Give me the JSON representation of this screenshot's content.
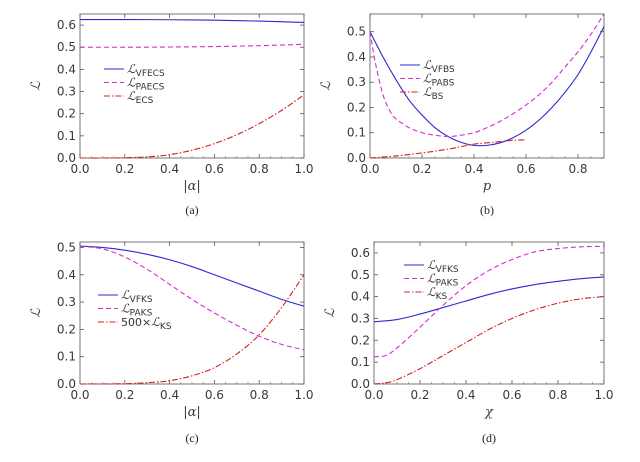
{
  "chart_data": [
    {
      "type": "line",
      "caption": "(a)",
      "xlabel": "|α|",
      "ylabel": "ℒ",
      "xlim": [
        0,
        1
      ],
      "ylim": [
        0,
        0.65
      ],
      "xticks": [
        "0.0",
        "0.2",
        "0.4",
        "0.6",
        "0.8",
        "1.0"
      ],
      "yticks": [
        "0.0",
        "0.1",
        "0.2",
        "0.3",
        "0.4",
        "0.5",
        "0.6"
      ],
      "legend_position": "center-left",
      "series": [
        {
          "name": "ℒ",
          "sub": "VFECS",
          "pre": "",
          "style": "solid",
          "color": "#2a2ad0",
          "x": [
            0,
            0.2,
            0.4,
            0.6,
            0.8,
            1.0
          ],
          "y": [
            0.625,
            0.625,
            0.624,
            0.622,
            0.618,
            0.612
          ]
        },
        {
          "name": "ℒ",
          "sub": "PAECS",
          "pre": "",
          "style": "dashed",
          "color": "#d52ad5",
          "x": [
            0,
            0.2,
            0.4,
            0.6,
            0.8,
            1.0
          ],
          "y": [
            0.5,
            0.5,
            0.501,
            0.503,
            0.507,
            0.513
          ]
        },
        {
          "name": "ℒ",
          "sub": "ECS",
          "pre": "",
          "style": "dashdot",
          "color": "#d42020",
          "x": [
            0,
            0.1,
            0.2,
            0.3,
            0.4,
            0.5,
            0.6,
            0.7,
            0.8,
            0.9,
            1.0
          ],
          "y": [
            0,
            0,
            0.001,
            0.005,
            0.015,
            0.035,
            0.065,
            0.105,
            0.155,
            0.215,
            0.285
          ]
        }
      ]
    },
    {
      "type": "line",
      "caption": "(b)",
      "xlabel": "p",
      "ylabel": "ℒ",
      "xlim": [
        0,
        0.9
      ],
      "ylim": [
        0,
        0.57
      ],
      "xticks": [
        "0.0",
        "0.2",
        "0.4",
        "0.6",
        "0.8"
      ],
      "yticks": [
        "0.0",
        "0.1",
        "0.2",
        "0.3",
        "0.4",
        "0.5"
      ],
      "legend_position": "upper-center",
      "series": [
        {
          "name": "ℒ",
          "sub": "VFBS",
          "pre": "",
          "style": "solid",
          "color": "#2a2ad0",
          "x": [
            0,
            0.05,
            0.1,
            0.15,
            0.2,
            0.25,
            0.3,
            0.35,
            0.4,
            0.45,
            0.5,
            0.55,
            0.6,
            0.65,
            0.7,
            0.75,
            0.8,
            0.85,
            0.9
          ],
          "y": [
            0.5,
            0.4,
            0.31,
            0.23,
            0.17,
            0.12,
            0.085,
            0.062,
            0.05,
            0.05,
            0.06,
            0.08,
            0.11,
            0.15,
            0.2,
            0.26,
            0.33,
            0.42,
            0.52
          ]
        },
        {
          "name": "ℒ",
          "sub": "PABS",
          "pre": "",
          "style": "dashed",
          "color": "#d52ad5",
          "x": [
            0,
            0.02,
            0.05,
            0.08,
            0.1,
            0.15,
            0.2,
            0.25,
            0.3,
            0.35,
            0.4,
            0.45,
            0.5,
            0.55,
            0.6,
            0.65,
            0.7,
            0.75,
            0.8,
            0.85,
            0.9
          ],
          "y": [
            0.5,
            0.38,
            0.25,
            0.18,
            0.155,
            0.12,
            0.1,
            0.09,
            0.085,
            0.09,
            0.1,
            0.12,
            0.145,
            0.175,
            0.21,
            0.25,
            0.3,
            0.36,
            0.42,
            0.49,
            0.57
          ]
        },
        {
          "name": "ℒ",
          "sub": "BS",
          "pre": "",
          "style": "dashdot",
          "color": "#d42020",
          "x": [
            0,
            0.1,
            0.2,
            0.3,
            0.35,
            0.4,
            0.45,
            0.5,
            0.55,
            0.6
          ],
          "y": [
            0,
            0.008,
            0.02,
            0.035,
            0.045,
            0.055,
            0.06,
            0.065,
            0.07,
            0.072
          ]
        }
      ]
    },
    {
      "type": "line",
      "caption": "(c)",
      "xlabel": "|α|",
      "ylabel": "ℒ",
      "xlim": [
        0,
        1
      ],
      "ylim": [
        0,
        0.52
      ],
      "xticks": [
        "0.0",
        "0.2",
        "0.4",
        "0.6",
        "0.8",
        "1.0"
      ],
      "yticks": [
        "0.0",
        "0.1",
        "0.2",
        "0.3",
        "0.4",
        "0.5"
      ],
      "legend_position": "center-left",
      "series": [
        {
          "name": "ℒ",
          "sub": "VFKS",
          "pre": "",
          "style": "solid",
          "color": "#2a2ad0",
          "x": [
            0,
            0.1,
            0.2,
            0.3,
            0.4,
            0.5,
            0.6,
            0.7,
            0.8,
            0.9,
            1.0
          ],
          "y": [
            0.505,
            0.5,
            0.49,
            0.475,
            0.455,
            0.43,
            0.4,
            0.37,
            0.34,
            0.31,
            0.285
          ]
        },
        {
          "name": "ℒ",
          "sub": "PAKS",
          "pre": "",
          "style": "dashed",
          "color": "#d52ad5",
          "x": [
            0,
            0.1,
            0.2,
            0.3,
            0.4,
            0.5,
            0.6,
            0.7,
            0.8,
            0.9,
            1.0
          ],
          "y": [
            0.505,
            0.495,
            0.465,
            0.42,
            0.365,
            0.31,
            0.26,
            0.215,
            0.175,
            0.145,
            0.125
          ]
        },
        {
          "name": "ℒ",
          "sub": "KS",
          "pre": "500×",
          "style": "dashdot",
          "color": "#d42020",
          "x": [
            0,
            0.2,
            0.3,
            0.4,
            0.5,
            0.6,
            0.7,
            0.8,
            0.9,
            1.0
          ],
          "y": [
            0,
            0.001,
            0.005,
            0.012,
            0.03,
            0.06,
            0.11,
            0.18,
            0.28,
            0.4
          ]
        }
      ]
    },
    {
      "type": "line",
      "caption": "(d)",
      "xlabel": "χ",
      "ylabel": "ℒ",
      "xlim": [
        0,
        1
      ],
      "ylim": [
        0,
        0.65
      ],
      "xticks": [
        "0.0",
        "0.2",
        "0.4",
        "0.6",
        "0.8",
        "1.0"
      ],
      "yticks": [
        "0.0",
        "0.1",
        "0.2",
        "0.3",
        "0.4",
        "0.5",
        "0.6"
      ],
      "legend_position": "upper-left",
      "series": [
        {
          "name": "ℒ",
          "sub": "VFKS",
          "pre": "",
          "style": "solid",
          "color": "#2a2ad0",
          "x": [
            0,
            0.1,
            0.2,
            0.3,
            0.4,
            0.5,
            0.6,
            0.7,
            0.8,
            0.9,
            1.0
          ],
          "y": [
            0.285,
            0.295,
            0.32,
            0.35,
            0.38,
            0.41,
            0.435,
            0.455,
            0.47,
            0.482,
            0.49
          ]
        },
        {
          "name": "ℒ",
          "sub": "PAKS",
          "pre": "",
          "style": "dashed",
          "color": "#d52ad5",
          "x": [
            0,
            0.05,
            0.1,
            0.2,
            0.3,
            0.4,
            0.5,
            0.6,
            0.7,
            0.8,
            0.9,
            1.0
          ],
          "y": [
            0.125,
            0.13,
            0.165,
            0.26,
            0.36,
            0.45,
            0.52,
            0.57,
            0.605,
            0.62,
            0.628,
            0.63
          ]
        },
        {
          "name": "ℒ",
          "sub": "KS",
          "pre": "",
          "style": "dashdot",
          "color": "#d42020",
          "x": [
            0,
            0.05,
            0.1,
            0.2,
            0.3,
            0.4,
            0.5,
            0.6,
            0.7,
            0.8,
            0.9,
            1.0
          ],
          "y": [
            0,
            0.005,
            0.02,
            0.07,
            0.13,
            0.19,
            0.25,
            0.3,
            0.34,
            0.37,
            0.39,
            0.4
          ]
        }
      ]
    }
  ]
}
